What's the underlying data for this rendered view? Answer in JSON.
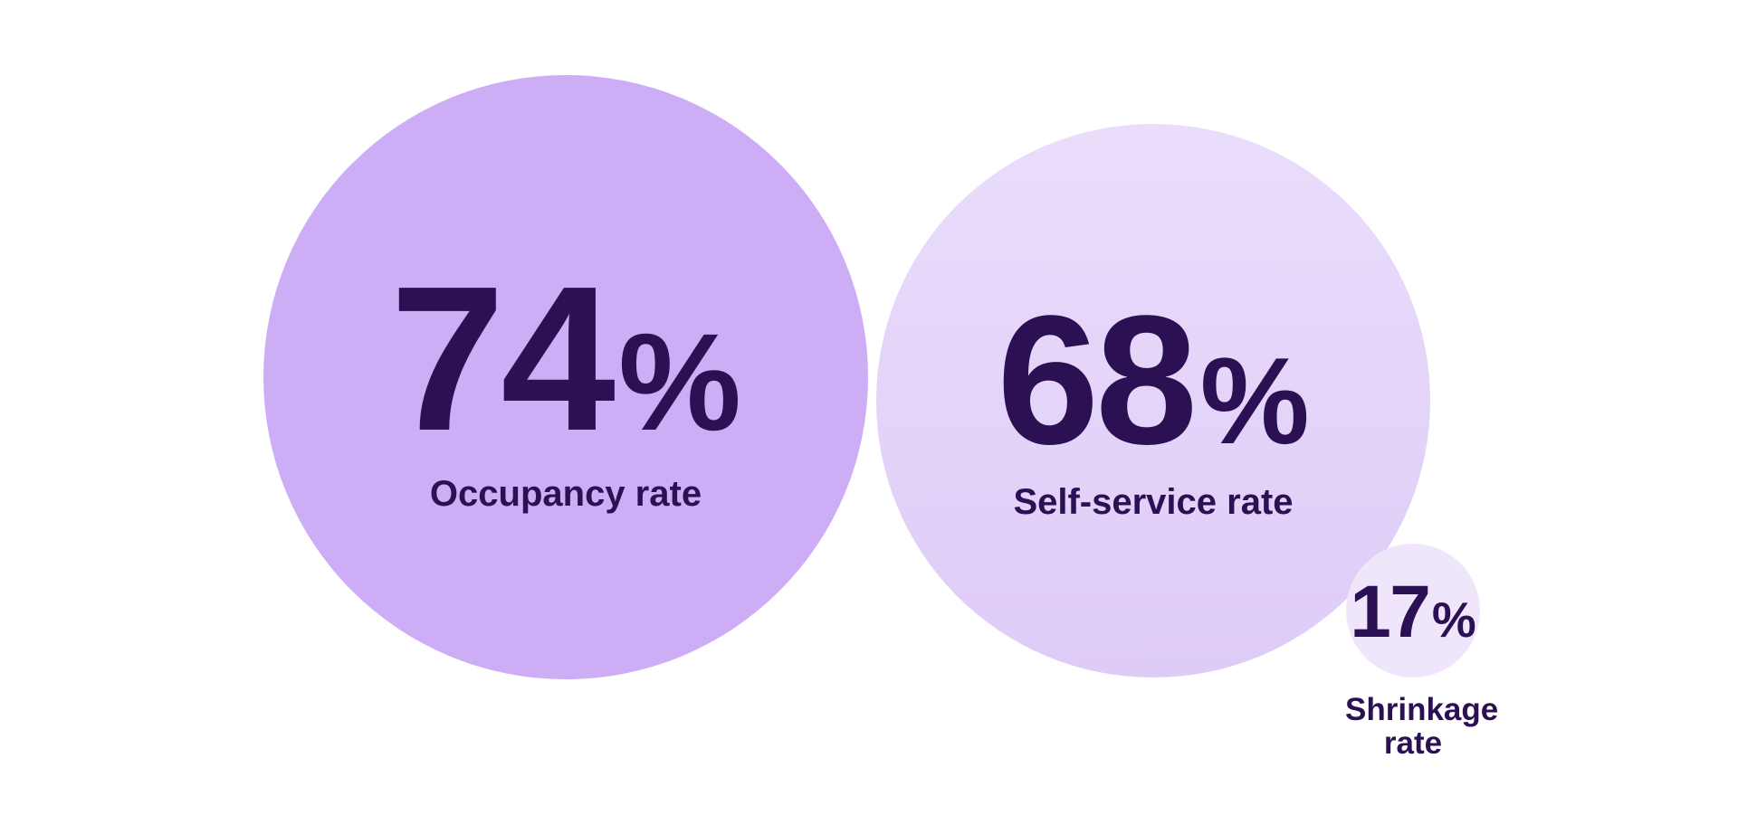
{
  "colors": {
    "background": "#FFFFFF",
    "text": "#2B1053",
    "occupancy_circle": "#CEADF7",
    "self_service_circle_top": "#EADDFB",
    "self_service_circle_bottom": "#DECCF7",
    "shrinkage_circle": "#F0E6FB"
  },
  "metrics": [
    {
      "value": "74",
      "unit": "%",
      "label": "Occupancy rate"
    },
    {
      "value": "68",
      "unit": "%",
      "label": "Self-service rate"
    },
    {
      "value": "17",
      "unit": "%",
      "label": "Shrinkage rate"
    }
  ],
  "chart_data": {
    "type": "bubble",
    "categories": [
      "Occupancy rate",
      "Self-service rate",
      "Shrinkage rate"
    ],
    "values": [
      74,
      68,
      17
    ],
    "unit": "%",
    "data_labels": [
      "74%",
      "68%",
      "17%"
    ],
    "legend": "none",
    "axes": "none",
    "layout_hint": "three proportional circles, diameter scales with value, bottom-aligned, arranged left to right by descending value; first circle solid mid-purple, second lighter purple with subtle vertical gradient, third pale purple with label below the circle"
  }
}
